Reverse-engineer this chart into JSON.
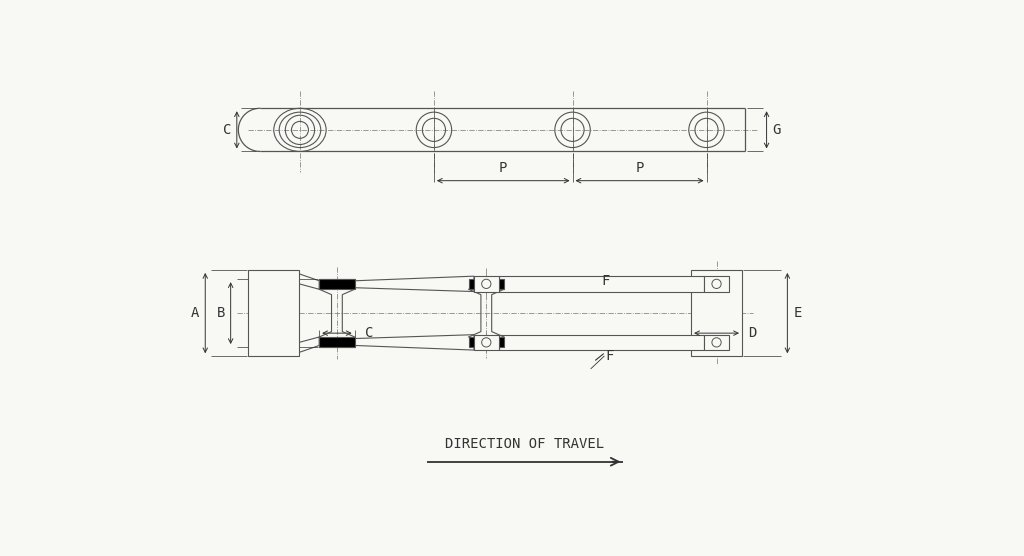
{
  "bg_color": "#f8f8f5",
  "line_color": "#555555",
  "dark_line": "#333333",
  "black": "#000000",
  "label_color": "#333333",
  "dim_color": "#555555",
  "centerline_color": "#888888",
  "labels": {
    "C_top": "C",
    "G_top": "G",
    "P1": "P",
    "P2": "P",
    "A": "A",
    "B": "B",
    "C_front": "C",
    "D": "D",
    "E": "E",
    "F1": "F",
    "F2": "F",
    "direction": "DIRECTION OF TRAVEL"
  },
  "font_size": 10
}
